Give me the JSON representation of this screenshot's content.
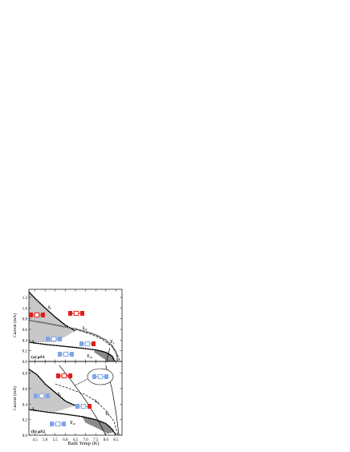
{
  "figure": {
    "xlabel": "Bath Temp (K)"
  },
  "chart_data": [
    {
      "type": "line",
      "panel_label": "(a) µS1",
      "xlabel": "Bath Temp (K)",
      "ylabel": "Current (mA)",
      "xlim": [
        4.2,
        8.8
      ],
      "ylim": [
        0.0,
        1.35
      ],
      "yticks": [
        0.0,
        0.2,
        0.4,
        0.6,
        0.8,
        1.0,
        1.2
      ],
      "shaded_regions": [
        {
          "name": "upper",
          "points": [
            [
              4.2,
              1.3
            ],
            [
              4.5,
              1.18
            ],
            [
              5.0,
              1.0
            ],
            [
              5.5,
              0.83
            ],
            [
              6.0,
              0.68
            ],
            [
              6.5,
              0.57
            ],
            [
              4.2,
              0.77
            ]
          ]
        },
        {
          "name": "middle",
          "points": [
            [
              4.2,
              0.77
            ],
            [
              5.0,
              0.72
            ],
            [
              5.8,
              0.65
            ],
            [
              6.5,
              0.57
            ],
            [
              5.5,
              0.36
            ],
            [
              4.2,
              0.36
            ]
          ]
        },
        {
          "name": "lower",
          "points": [
            [
              7.5,
              0.22
            ],
            [
              7.9,
              0.19
            ],
            [
              8.2,
              0.15
            ],
            [
              8.4,
              0.08
            ],
            [
              8.45,
              0.0
            ],
            [
              8.1,
              0.0
            ],
            [
              7.7,
              0.1
            ],
            [
              7.4,
              0.18
            ]
          ]
        }
      ],
      "series": [
        {
          "name": "I₂",
          "style": "dotted-black",
          "values": [
            [
              4.2,
              1.3
            ],
            [
              4.5,
              1.18
            ],
            [
              5.0,
              1.0
            ],
            [
              5.5,
              0.83
            ],
            [
              6.0,
              0.68
            ],
            [
              6.5,
              0.57
            ]
          ]
        },
        {
          "name": "I₃",
          "style": "dotted-black",
          "values": [
            [
              4.2,
              0.36
            ],
            [
              5.0,
              0.32
            ],
            [
              6.0,
              0.28
            ],
            [
              7.0,
              0.24
            ],
            [
              7.6,
              0.21
            ],
            [
              8.0,
              0.17
            ],
            [
              8.3,
              0.1
            ],
            [
              8.45,
              0.0
            ]
          ]
        },
        {
          "name": "I₁₂",
          "style": "open-circles",
          "values": [
            [
              4.2,
              0.77
            ],
            [
              5.0,
              0.72
            ],
            [
              5.8,
              0.66
            ],
            [
              6.5,
              0.61
            ],
            [
              7.0,
              0.56
            ],
            [
              7.5,
              0.5
            ],
            [
              8.0,
              0.4
            ],
            [
              8.3,
              0.3
            ],
            [
              8.5,
              0.18
            ],
            [
              8.6,
              0.0
            ]
          ]
        },
        {
          "name": "T₁₂",
          "style": "dashed",
          "values": [
            [
              6.5,
              0.6
            ],
            [
              7.2,
              0.52
            ],
            [
              7.8,
              0.42
            ],
            [
              8.3,
              0.28
            ],
            [
              8.6,
              0.1
            ],
            [
              8.7,
              0.0
            ]
          ]
        },
        {
          "name": "T₂",
          "style": "solid",
          "values": [
            [
              8.05,
              0.0
            ],
            [
              8.1,
              0.12
            ],
            [
              8.2,
              0.25
            ]
          ]
        }
      ],
      "annotations": [
        "I₂",
        "I₁₂",
        "I₃",
        "T₁₂",
        "T₂"
      ]
    },
    {
      "type": "line",
      "panel_label": "(b) µS2",
      "xlabel": "Bath Temp (K)",
      "ylabel": "Current (mA)",
      "xlim": [
        4.2,
        8.8
      ],
      "ylim": [
        0.0,
        0.95
      ],
      "xticks": [
        4.5,
        5.0,
        5.5,
        6.0,
        6.5,
        7.0,
        7.5,
        8.0,
        8.5
      ],
      "yticks": [
        0.0,
        0.2,
        0.4,
        0.6,
        0.8
      ],
      "shaded_regions": [
        {
          "name": "upper",
          "points": [
            [
              4.2,
              0.85
            ],
            [
              4.6,
              0.78
            ],
            [
              5.0,
              0.66
            ],
            [
              5.5,
              0.55
            ],
            [
              6.0,
              0.44
            ],
            [
              6.5,
              0.38
            ],
            [
              5.5,
              0.3
            ],
            [
              4.2,
              0.33
            ]
          ]
        },
        {
          "name": "lower",
          "points": [
            [
              6.8,
              0.25
            ],
            [
              7.3,
              0.22
            ],
            [
              7.8,
              0.18
            ],
            [
              8.2,
              0.12
            ],
            [
              8.4,
              0.04
            ],
            [
              8.1,
              0.02
            ],
            [
              7.5,
              0.1
            ],
            [
              7.0,
              0.16
            ]
          ]
        }
      ],
      "series": [
        {
          "name": "I₂",
          "style": "dotted-black",
          "values": [
            [
              4.2,
              0.85
            ],
            [
              4.6,
              0.78
            ],
            [
              5.0,
              0.66
            ],
            [
              5.5,
              0.55
            ],
            [
              6.0,
              0.44
            ],
            [
              6.5,
              0.38
            ]
          ]
        },
        {
          "name": "I₃",
          "style": "dotted-black",
          "values": [
            [
              4.2,
              0.33
            ],
            [
              5.0,
              0.3
            ],
            [
              6.0,
              0.27
            ],
            [
              6.8,
              0.24
            ],
            [
              7.5,
              0.2
            ],
            [
              8.0,
              0.15
            ],
            [
              8.3,
              0.08
            ],
            [
              8.5,
              0.0
            ]
          ]
        },
        {
          "name": "I₁₂",
          "style": "dashed",
          "values": [
            [
              5.5,
              0.66
            ],
            [
              6.2,
              0.6
            ],
            [
              7.0,
              0.52
            ],
            [
              7.5,
              0.44
            ],
            [
              8.0,
              0.32
            ],
            [
              8.4,
              0.18
            ],
            [
              8.6,
              0.0
            ]
          ]
        },
        {
          "name": "T₁₂",
          "style": "solid",
          "values": [
            [
              8.0,
              0.9
            ],
            [
              8.3,
              0.6
            ],
            [
              8.5,
              0.3
            ],
            [
              8.65,
              0.0
            ]
          ]
        },
        {
          "name": "T₂",
          "style": "solid",
          "values": [
            [
              5.7,
              0.9
            ],
            [
              6.3,
              0.7
            ],
            [
              7.0,
              0.45
            ],
            [
              7.6,
              0.2
            ],
            [
              8.0,
              0.0
            ]
          ]
        }
      ],
      "annotations": [
        "I₂",
        "I₁₂",
        "I₃",
        "T₁₂",
        "T₂"
      ]
    }
  ],
  "tick_format": {
    "x_decimals": 1,
    "y_decimals": 1
  },
  "icons": {
    "red": "#e0201b",
    "blue": "#7fa6e6",
    "shade": "#c8c8c8",
    "dark_shade": "#8a8a8a"
  }
}
